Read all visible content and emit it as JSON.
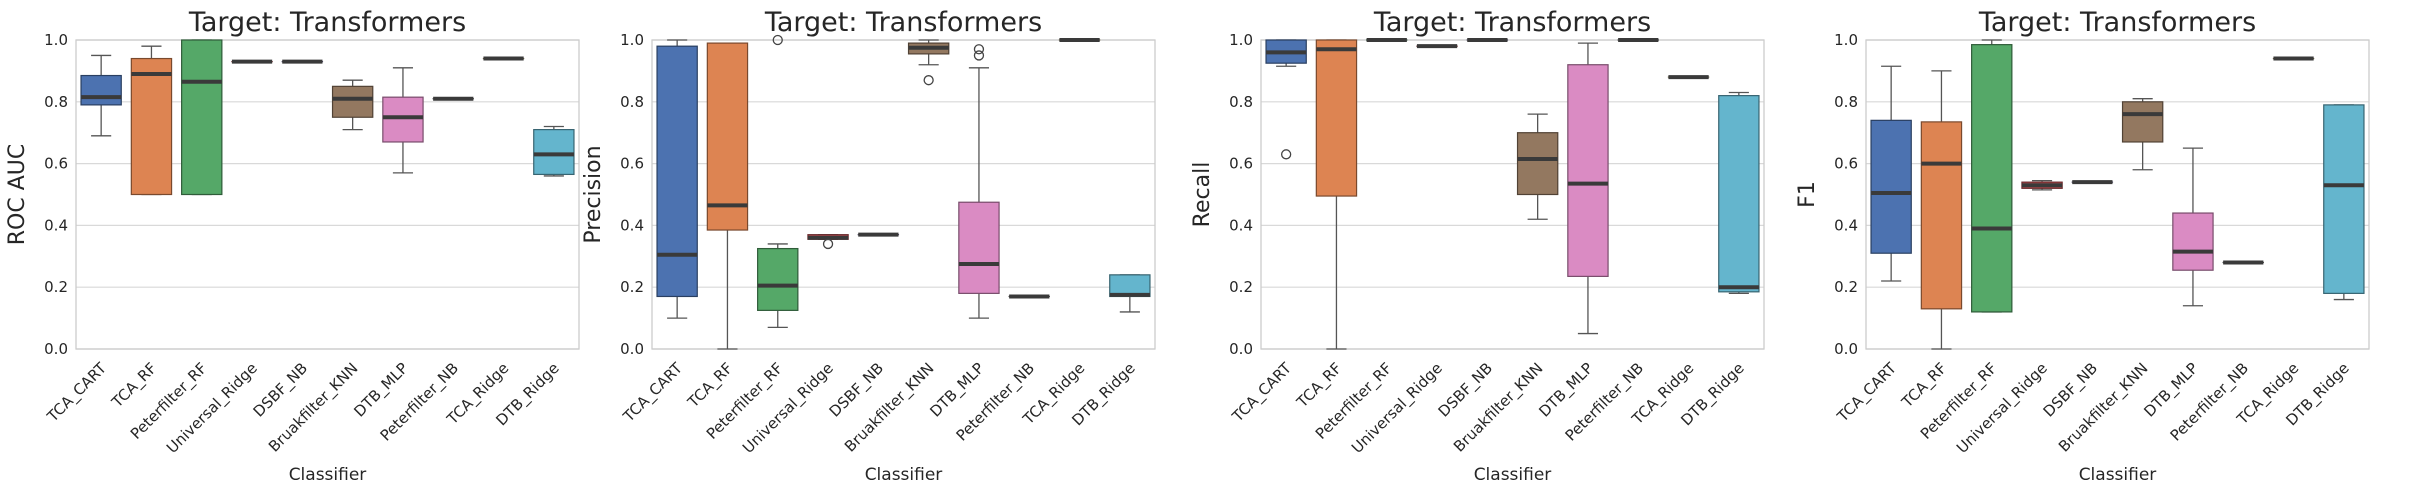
{
  "chart_data": [
    {
      "type": "box",
      "title": "Target: Transformers",
      "xlabel": "Classifier",
      "ylabel": "ROC AUC",
      "ylim": [
        0,
        1
      ],
      "yticks": [
        "0.0",
        "0.2",
        "0.4",
        "0.6",
        "0.8",
        "1.0"
      ],
      "grid": "horizontal",
      "categories": [
        "TCA_CART",
        "TCA_RF",
        "Peterfilter_RF",
        "Universal_Ridge",
        "DSBF_NB",
        "Bruakfilter_KNN",
        "DTB_MLP",
        "Peterfilter_NB",
        "TCA_Ridge",
        "DTB_Ridge"
      ],
      "boxes": [
        {
          "min": 0.69,
          "q1": 0.79,
          "median": 0.815,
          "q3": 0.885,
          "max": 0.95,
          "outliers": []
        },
        {
          "min": 0.5,
          "q1": 0.5,
          "median": 0.89,
          "q3": 0.94,
          "max": 0.98,
          "outliers": []
        },
        {
          "min": 0.5,
          "q1": 0.5,
          "median": 0.865,
          "q3": 1.0,
          "max": 1.0,
          "outliers": []
        },
        {
          "min": 0.93,
          "q1": 0.93,
          "median": 0.93,
          "q3": 0.93,
          "max": 0.93,
          "outliers": []
        },
        {
          "min": 0.93,
          "q1": 0.93,
          "median": 0.93,
          "q3": 0.93,
          "max": 0.93,
          "outliers": []
        },
        {
          "min": 0.71,
          "q1": 0.75,
          "median": 0.81,
          "q3": 0.85,
          "max": 0.87,
          "outliers": []
        },
        {
          "min": 0.57,
          "q1": 0.67,
          "median": 0.75,
          "q3": 0.815,
          "max": 0.91,
          "outliers": []
        },
        {
          "min": 0.81,
          "q1": 0.81,
          "median": 0.81,
          "q3": 0.81,
          "max": 0.81,
          "outliers": []
        },
        {
          "min": 0.94,
          "q1": 0.94,
          "median": 0.94,
          "q3": 0.94,
          "max": 0.94,
          "outliers": []
        },
        {
          "min": 0.56,
          "q1": 0.565,
          "median": 0.63,
          "q3": 0.71,
          "max": 0.72,
          "outliers": []
        }
      ]
    },
    {
      "type": "box",
      "title": "Target: Transformers",
      "xlabel": "Classifier",
      "ylabel": "Precision",
      "ylim": [
        0,
        1
      ],
      "yticks": [
        "0.0",
        "0.2",
        "0.4",
        "0.6",
        "0.8",
        "1.0"
      ],
      "grid": "horizontal",
      "categories": [
        "TCA_CART",
        "TCA_RF",
        "Peterfilter_RF",
        "Universal_Ridge",
        "DSBF_NB",
        "Bruakfilter_KNN",
        "DTB_MLP",
        "Peterfilter_NB",
        "TCA_Ridge",
        "DTB_Ridge"
      ],
      "boxes": [
        {
          "min": 0.1,
          "q1": 0.17,
          "median": 0.305,
          "q3": 0.98,
          "max": 1.0,
          "outliers": []
        },
        {
          "min": 0.0,
          "q1": 0.385,
          "median": 0.465,
          "q3": 0.99,
          "max": 0.99,
          "outliers": []
        },
        {
          "min": 0.07,
          "q1": 0.125,
          "median": 0.205,
          "q3": 0.325,
          "max": 0.34,
          "outliers": [
            1.0
          ]
        },
        {
          "min": 0.355,
          "q1": 0.355,
          "median": 0.36,
          "q3": 0.37,
          "max": 0.37,
          "outliers": [
            0.34
          ]
        },
        {
          "min": 0.37,
          "q1": 0.37,
          "median": 0.37,
          "q3": 0.37,
          "max": 0.37,
          "outliers": []
        },
        {
          "min": 0.92,
          "q1": 0.955,
          "median": 0.975,
          "q3": 0.99,
          "max": 1.0,
          "outliers": [
            0.87
          ]
        },
        {
          "min": 0.1,
          "q1": 0.18,
          "median": 0.275,
          "q3": 0.475,
          "max": 0.91,
          "outliers": [
            0.95,
            0.97
          ]
        },
        {
          "min": 0.17,
          "q1": 0.17,
          "median": 0.17,
          "q3": 0.17,
          "max": 0.17,
          "outliers": []
        },
        {
          "min": 1.0,
          "q1": 1.0,
          "median": 1.0,
          "q3": 1.0,
          "max": 1.0,
          "outliers": []
        },
        {
          "min": 0.12,
          "q1": 0.17,
          "median": 0.175,
          "q3": 0.24,
          "max": 0.24,
          "outliers": []
        }
      ]
    },
    {
      "type": "box",
      "title": "Target: Transformers",
      "xlabel": "Classifier",
      "ylabel": "Recall",
      "ylim": [
        0,
        1
      ],
      "yticks": [
        "0.0",
        "0.2",
        "0.4",
        "0.6",
        "0.8",
        "1.0"
      ],
      "grid": "horizontal",
      "categories": [
        "TCA_CART",
        "TCA_RF",
        "Peterfilter_RF",
        "Universal_Ridge",
        "DSBF_NB",
        "Bruakfilter_KNN",
        "DTB_MLP",
        "Peterfilter_NB",
        "TCA_Ridge",
        "DTB_Ridge"
      ],
      "boxes": [
        {
          "min": 0.915,
          "q1": 0.925,
          "median": 0.96,
          "q3": 1.0,
          "max": 1.0,
          "outliers": [
            0.63
          ]
        },
        {
          "min": 0.0,
          "q1": 0.495,
          "median": 0.97,
          "q3": 1.0,
          "max": 1.0,
          "outliers": []
        },
        {
          "min": 1.0,
          "q1": 1.0,
          "median": 1.0,
          "q3": 1.0,
          "max": 1.0,
          "outliers": []
        },
        {
          "min": 0.98,
          "q1": 0.98,
          "median": 0.98,
          "q3": 0.98,
          "max": 0.98,
          "outliers": []
        },
        {
          "min": 1.0,
          "q1": 1.0,
          "median": 1.0,
          "q3": 1.0,
          "max": 1.0,
          "outliers": []
        },
        {
          "min": 0.42,
          "q1": 0.5,
          "median": 0.615,
          "q3": 0.7,
          "max": 0.76,
          "outliers": []
        },
        {
          "min": 0.05,
          "q1": 0.235,
          "median": 0.535,
          "q3": 0.92,
          "max": 0.99,
          "outliers": []
        },
        {
          "min": 1.0,
          "q1": 1.0,
          "median": 1.0,
          "q3": 1.0,
          "max": 1.0,
          "outliers": []
        },
        {
          "min": 0.88,
          "q1": 0.88,
          "median": 0.88,
          "q3": 0.88,
          "max": 0.88,
          "outliers": []
        },
        {
          "min": 0.18,
          "q1": 0.185,
          "median": 0.2,
          "q3": 0.82,
          "max": 0.83,
          "outliers": []
        }
      ]
    },
    {
      "type": "box",
      "title": "Target: Transformers",
      "xlabel": "Classifier",
      "ylabel": "F1",
      "ylim": [
        0,
        1
      ],
      "yticks": [
        "0.0",
        "0.2",
        "0.4",
        "0.6",
        "0.8",
        "1.0"
      ],
      "grid": "horizontal",
      "categories": [
        "TCA_CART",
        "TCA_RF",
        "Peterfilter_RF",
        "Universal_Ridge",
        "DSBF_NB",
        "Bruakfilter_KNN",
        "DTB_MLP",
        "Peterfilter_NB",
        "TCA_Ridge",
        "DTB_Ridge"
      ],
      "boxes": [
        {
          "min": 0.22,
          "q1": 0.31,
          "median": 0.505,
          "q3": 0.74,
          "max": 0.915,
          "outliers": []
        },
        {
          "min": 0.0,
          "q1": 0.13,
          "median": 0.6,
          "q3": 0.735,
          "max": 0.9,
          "outliers": []
        },
        {
          "min": 0.12,
          "q1": 0.12,
          "median": 0.39,
          "q3": 0.985,
          "max": 1.0,
          "outliers": []
        },
        {
          "min": 0.515,
          "q1": 0.52,
          "median": 0.53,
          "q3": 0.54,
          "max": 0.545,
          "outliers": []
        },
        {
          "min": 0.54,
          "q1": 0.54,
          "median": 0.54,
          "q3": 0.54,
          "max": 0.54,
          "outliers": []
        },
        {
          "min": 0.58,
          "q1": 0.67,
          "median": 0.76,
          "q3": 0.8,
          "max": 0.81,
          "outliers": []
        },
        {
          "min": 0.14,
          "q1": 0.255,
          "median": 0.315,
          "q3": 0.44,
          "max": 0.65,
          "outliers": []
        },
        {
          "min": 0.28,
          "q1": 0.28,
          "median": 0.28,
          "q3": 0.28,
          "max": 0.28,
          "outliers": []
        },
        {
          "min": 0.94,
          "q1": 0.94,
          "median": 0.94,
          "q3": 0.94,
          "max": 0.94,
          "outliers": []
        },
        {
          "min": 0.16,
          "q1": 0.18,
          "median": 0.53,
          "q3": 0.79,
          "max": 0.79,
          "outliers": []
        }
      ]
    }
  ],
  "colors": [
    "#4c72b0",
    "#dd8452",
    "#55a868",
    "#c44e52",
    "#8172b3",
    "#937860",
    "#da8bc3",
    "#8c8c8c",
    "#ccb974",
    "#64b5cd"
  ]
}
